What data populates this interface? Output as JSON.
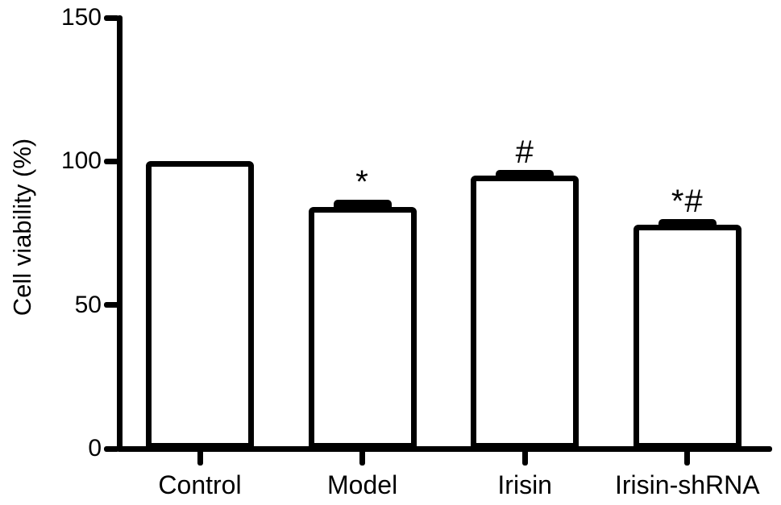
{
  "chart_data": {
    "type": "bar",
    "title": "",
    "ylabel": "Cell viability (%)",
    "xlabel": "",
    "categories": [
      "Control",
      "Model",
      "Irisin",
      "Irisin-shRNA"
    ],
    "values": [
      100,
      84,
      95,
      78
    ],
    "errors": [
      0,
      2.5,
      2,
      2
    ],
    "error_direction": "upper",
    "annotations": [
      "",
      "*",
      "#",
      "*#"
    ],
    "yticks": [
      0,
      50,
      100,
      150
    ],
    "ylim": [
      0,
      150
    ],
    "bar_fill": "#ffffff",
    "bar_stroke": "#000000",
    "background": "#ffffff",
    "grid": false,
    "legend": false
  }
}
